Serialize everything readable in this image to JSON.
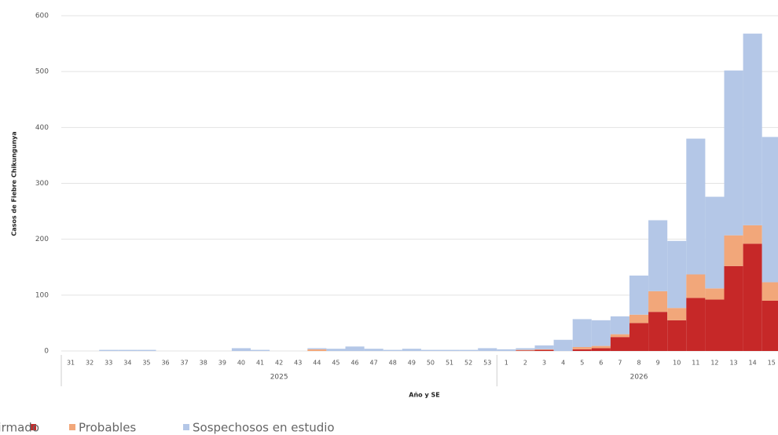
{
  "chart_data": {
    "type": "stacked_bar",
    "y_label": "Casos de Fiebre Chikungunya",
    "x_label": "Año y SE",
    "groups": [
      {
        "name": "2025",
        "categories": [
          "31",
          "32",
          "33",
          "34",
          "35",
          "36",
          "37",
          "38",
          "39",
          "40",
          "41",
          "42",
          "43",
          "44",
          "45",
          "46",
          "47",
          "48",
          "49",
          "50",
          "51",
          "52",
          "53"
        ]
      },
      {
        "name": "2026",
        "categories": [
          "1",
          "2",
          "3",
          "4",
          "5",
          "6",
          "7",
          "8",
          "9",
          "10",
          "11",
          "12",
          "13",
          "14",
          "15"
        ]
      }
    ],
    "series": [
      {
        "name": "Confirmado",
        "color": "#c62828",
        "values": [
          0,
          0,
          0,
          0,
          0,
          0,
          0,
          0,
          0,
          0,
          0,
          0,
          0,
          0,
          0,
          0,
          0,
          0,
          0,
          0,
          0,
          0,
          0,
          0,
          1,
          2,
          0,
          3,
          5,
          25,
          50,
          70,
          55,
          95,
          92,
          152,
          192,
          90
        ]
      },
      {
        "name": "Probables",
        "color": "#f2a77a",
        "values": [
          0,
          0,
          0,
          0,
          0,
          0,
          0,
          0,
          0,
          0,
          0,
          0,
          0,
          3,
          0,
          0,
          0,
          0,
          0,
          0,
          0,
          0,
          0,
          0,
          1,
          1,
          0,
          4,
          4,
          5,
          15,
          37,
          22,
          42,
          20,
          55,
          33,
          33
        ]
      },
      {
        "name": "Sospechosos en estudio",
        "color": "#b4c7e7",
        "values": [
          0,
          0,
          2,
          2,
          2,
          0,
          0,
          0,
          0,
          5,
          2,
          0,
          0,
          2,
          4,
          8,
          4,
          2,
          4,
          2,
          2,
          2,
          5,
          3,
          3,
          7,
          20,
          50,
          46,
          32,
          70,
          127,
          120,
          243,
          164,
          295,
          343,
          260
        ]
      }
    ],
    "ylim": [
      0,
      600
    ],
    "yticks": [
      0,
      100,
      200,
      300,
      400,
      500,
      600
    ],
    "grid": true
  }
}
